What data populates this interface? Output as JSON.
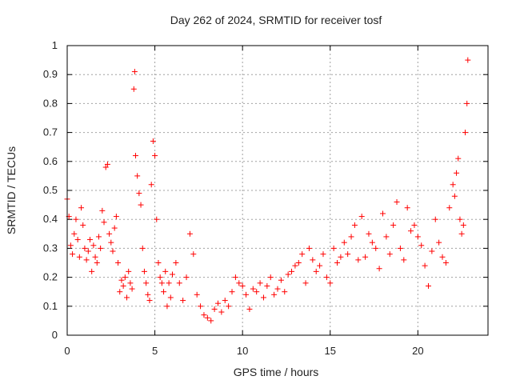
{
  "chart_data": {
    "type": "scatter",
    "title": "Day 262 of 2024, SRMTID for receiver tosf",
    "xlabel": "GPS time / hours",
    "ylabel": "SRMTID / TECUs",
    "xlim": [
      0,
      24
    ],
    "ylim": [
      0,
      1
    ],
    "xticks": [
      0,
      5,
      10,
      15,
      20
    ],
    "yticks": [
      0,
      0.1,
      0.2,
      0.3,
      0.4,
      0.5,
      0.6,
      0.7,
      0.8,
      0.9,
      1
    ],
    "xtick_labels": [
      "0",
      "5",
      "10",
      "15",
      "20"
    ],
    "ytick_labels": [
      "0",
      "0.1",
      "0.2",
      "0.3",
      "0.4",
      "0.5",
      "0.6",
      "0.7",
      "0.8",
      "0.9",
      "1"
    ],
    "grid": true,
    "marker": "+",
    "color": "#ff0000",
    "series": [
      {
        "name": "SRMTID",
        "x": [
          0.0,
          0.1,
          0.2,
          0.3,
          0.4,
          0.5,
          0.6,
          0.7,
          0.8,
          0.9,
          1.0,
          1.1,
          1.2,
          1.3,
          1.4,
          1.5,
          1.6,
          1.7,
          1.8,
          1.9,
          2.0,
          2.1,
          2.2,
          2.3,
          2.4,
          2.5,
          2.6,
          2.7,
          2.8,
          2.9,
          3.0,
          3.1,
          3.2,
          3.3,
          3.4,
          3.5,
          3.6,
          3.7,
          3.8,
          3.85,
          3.9,
          4.0,
          4.1,
          4.2,
          4.3,
          4.4,
          4.5,
          4.6,
          4.7,
          4.8,
          4.9,
          5.0,
          5.1,
          5.2,
          5.3,
          5.4,
          5.5,
          5.6,
          5.7,
          5.8,
          5.9,
          6.0,
          6.2,
          6.4,
          6.6,
          6.8,
          7.0,
          7.2,
          7.4,
          7.6,
          7.8,
          8.0,
          8.2,
          8.4,
          8.6,
          8.8,
          9.0,
          9.2,
          9.4,
          9.6,
          9.8,
          10.0,
          10.2,
          10.4,
          10.6,
          10.8,
          11.0,
          11.2,
          11.4,
          11.6,
          11.8,
          12.0,
          12.2,
          12.4,
          12.6,
          12.8,
          13.0,
          13.2,
          13.4,
          13.6,
          13.8,
          14.0,
          14.2,
          14.4,
          14.6,
          14.8,
          15.0,
          15.2,
          15.4,
          15.6,
          15.8,
          16.0,
          16.2,
          16.4,
          16.6,
          16.8,
          17.0,
          17.2,
          17.4,
          17.6,
          17.8,
          18.0,
          18.2,
          18.4,
          18.6,
          18.8,
          19.0,
          19.2,
          19.4,
          19.6,
          19.8,
          20.0,
          20.2,
          20.4,
          20.6,
          20.8,
          21.0,
          21.2,
          21.4,
          21.6,
          21.8,
          22.0,
          22.1,
          22.2,
          22.3,
          22.4,
          22.5,
          22.6,
          22.7,
          22.8,
          22.85
        ],
        "y": [
          0.47,
          0.41,
          0.31,
          0.28,
          0.35,
          0.4,
          0.33,
          0.27,
          0.44,
          0.38,
          0.3,
          0.26,
          0.29,
          0.33,
          0.22,
          0.31,
          0.27,
          0.25,
          0.34,
          0.3,
          0.43,
          0.39,
          0.58,
          0.59,
          0.35,
          0.32,
          0.29,
          0.37,
          0.41,
          0.25,
          0.15,
          0.19,
          0.17,
          0.2,
          0.13,
          0.22,
          0.18,
          0.16,
          0.85,
          0.91,
          0.62,
          0.55,
          0.49,
          0.45,
          0.3,
          0.22,
          0.18,
          0.14,
          0.12,
          0.52,
          0.67,
          0.62,
          0.4,
          0.25,
          0.2,
          0.18,
          0.15,
          0.22,
          0.1,
          0.18,
          0.13,
          0.21,
          0.25,
          0.18,
          0.12,
          0.2,
          0.35,
          0.28,
          0.14,
          0.1,
          0.07,
          0.06,
          0.05,
          0.09,
          0.11,
          0.08,
          0.12,
          0.1,
          0.15,
          0.2,
          0.18,
          0.17,
          0.14,
          0.09,
          0.16,
          0.15,
          0.18,
          0.13,
          0.17,
          0.2,
          0.14,
          0.16,
          0.19,
          0.15,
          0.21,
          0.22,
          0.24,
          0.25,
          0.28,
          0.18,
          0.3,
          0.26,
          0.22,
          0.24,
          0.28,
          0.2,
          0.18,
          0.3,
          0.25,
          0.27,
          0.32,
          0.28,
          0.34,
          0.38,
          0.26,
          0.41,
          0.27,
          0.35,
          0.32,
          0.3,
          0.23,
          0.42,
          0.34,
          0.28,
          0.38,
          0.46,
          0.3,
          0.26,
          0.44,
          0.36,
          0.38,
          0.34,
          0.31,
          0.24,
          0.17,
          0.29,
          0.4,
          0.32,
          0.27,
          0.25,
          0.44,
          0.52,
          0.48,
          0.56,
          0.61,
          0.4,
          0.35,
          0.38,
          0.7,
          0.8,
          0.95
        ]
      }
    ]
  }
}
